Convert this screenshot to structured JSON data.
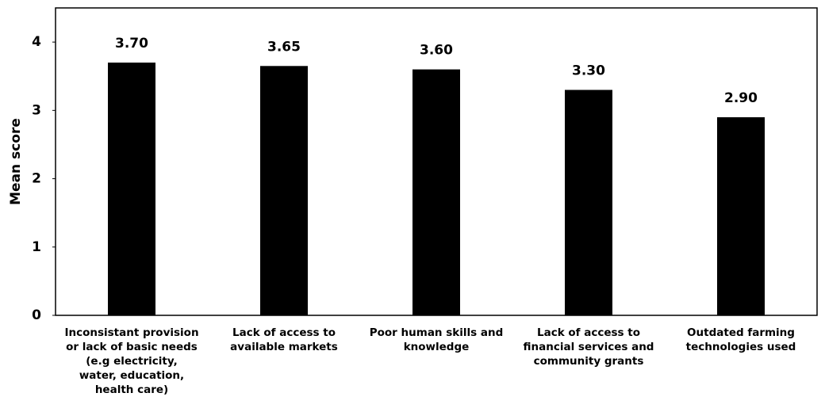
{
  "chart_data": {
    "type": "bar",
    "y_label": "Mean score",
    "categories": [
      [
        "Inconsistant provision",
        "or lack of basic needs",
        "(e.g electricity,",
        "water, education,",
        "health care)"
      ],
      [
        "Lack of access to",
        "available markets"
      ],
      [
        "Poor human skills and",
        "knowledge"
      ],
      [
        "Lack of access to",
        "financial services and",
        "community grants"
      ],
      [
        "Outdated farming",
        "technologies used"
      ]
    ],
    "values": [
      3.7,
      3.65,
      3.6,
      3.3,
      2.9
    ],
    "value_labels": [
      "3.70",
      "3.65",
      "3.60",
      "3.30",
      "2.90"
    ],
    "color": "#000000",
    "ylim": [
      0,
      4.5
    ],
    "yticks": [
      0,
      1,
      2,
      3,
      4
    ],
    "grid": false
  }
}
